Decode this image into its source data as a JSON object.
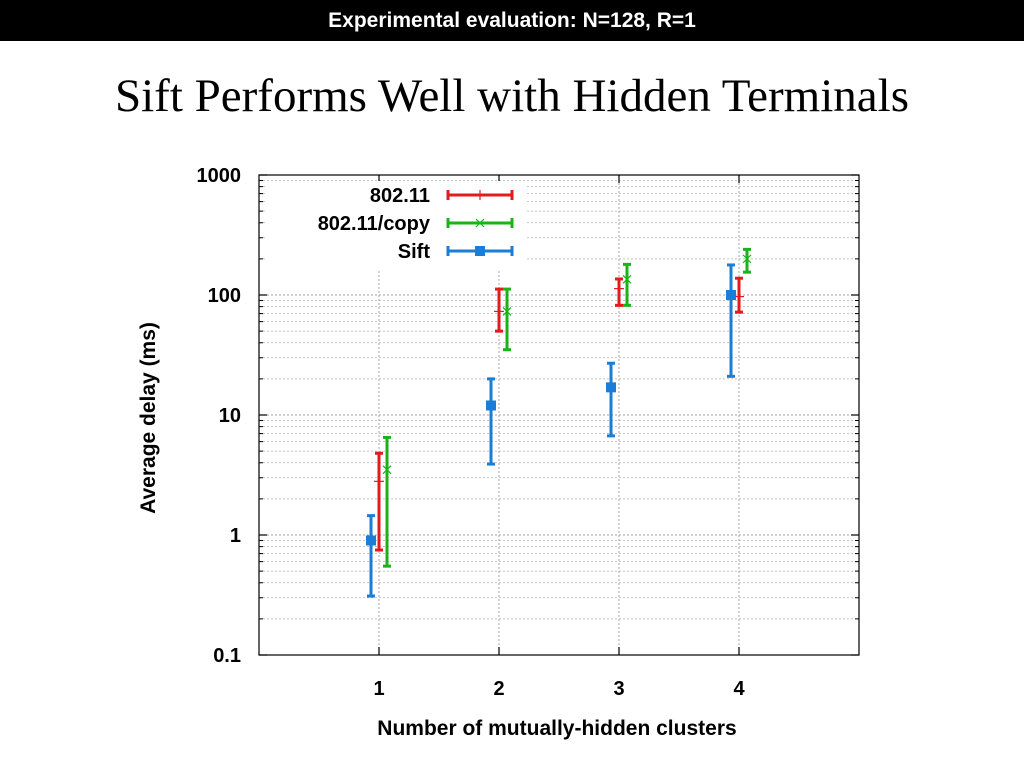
{
  "slide": {
    "banner": "Experimental evaluation: N=128, R=1",
    "title": "Sift Performs Well with Hidden Terminals"
  },
  "chart_data": {
    "type": "scatter",
    "error_bars": true,
    "xlabel": "Number of mutually-hidden clusters",
    "ylabel": "Average delay (ms)",
    "x_categories": [
      "1",
      "2",
      "3",
      "4"
    ],
    "y_scale": "log",
    "ylim": [
      0.1,
      1000
    ],
    "y_ticks": [
      "0.1",
      "1",
      "10",
      "100",
      "1000"
    ],
    "grid": true,
    "legend_position": "top-left",
    "series": [
      {
        "name": "802.11",
        "color": "#e41a1c",
        "marker": "plus",
        "points": [
          {
            "x": 1,
            "y": 2.8,
            "low": 0.75,
            "high": 4.8
          },
          {
            "x": 2,
            "y": 73,
            "low": 50,
            "high": 112
          },
          {
            "x": 3,
            "y": 113,
            "low": 82,
            "high": 136
          },
          {
            "x": 4,
            "y": 97,
            "low": 72,
            "high": 138
          }
        ]
      },
      {
        "name": "802.11/copy",
        "color": "#1ab31a",
        "marker": "cross",
        "points": [
          {
            "x": 1,
            "y": 3.5,
            "low": 0.55,
            "high": 6.5
          },
          {
            "x": 2,
            "y": 73,
            "low": 35,
            "high": 112
          },
          {
            "x": 3,
            "y": 135,
            "low": 82,
            "high": 180
          },
          {
            "x": 4,
            "y": 200,
            "low": 155,
            "high": 240
          }
        ]
      },
      {
        "name": "Sift",
        "color": "#1a7ed9",
        "marker": "square",
        "points": [
          {
            "x": 1,
            "y": 0.9,
            "low": 0.31,
            "high": 1.45
          },
          {
            "x": 2,
            "y": 12,
            "low": 3.9,
            "high": 20
          },
          {
            "x": 3,
            "y": 17,
            "low": 6.7,
            "high": 27
          },
          {
            "x": 4,
            "y": 100,
            "low": 21,
            "high": 178
          }
        ]
      }
    ]
  }
}
